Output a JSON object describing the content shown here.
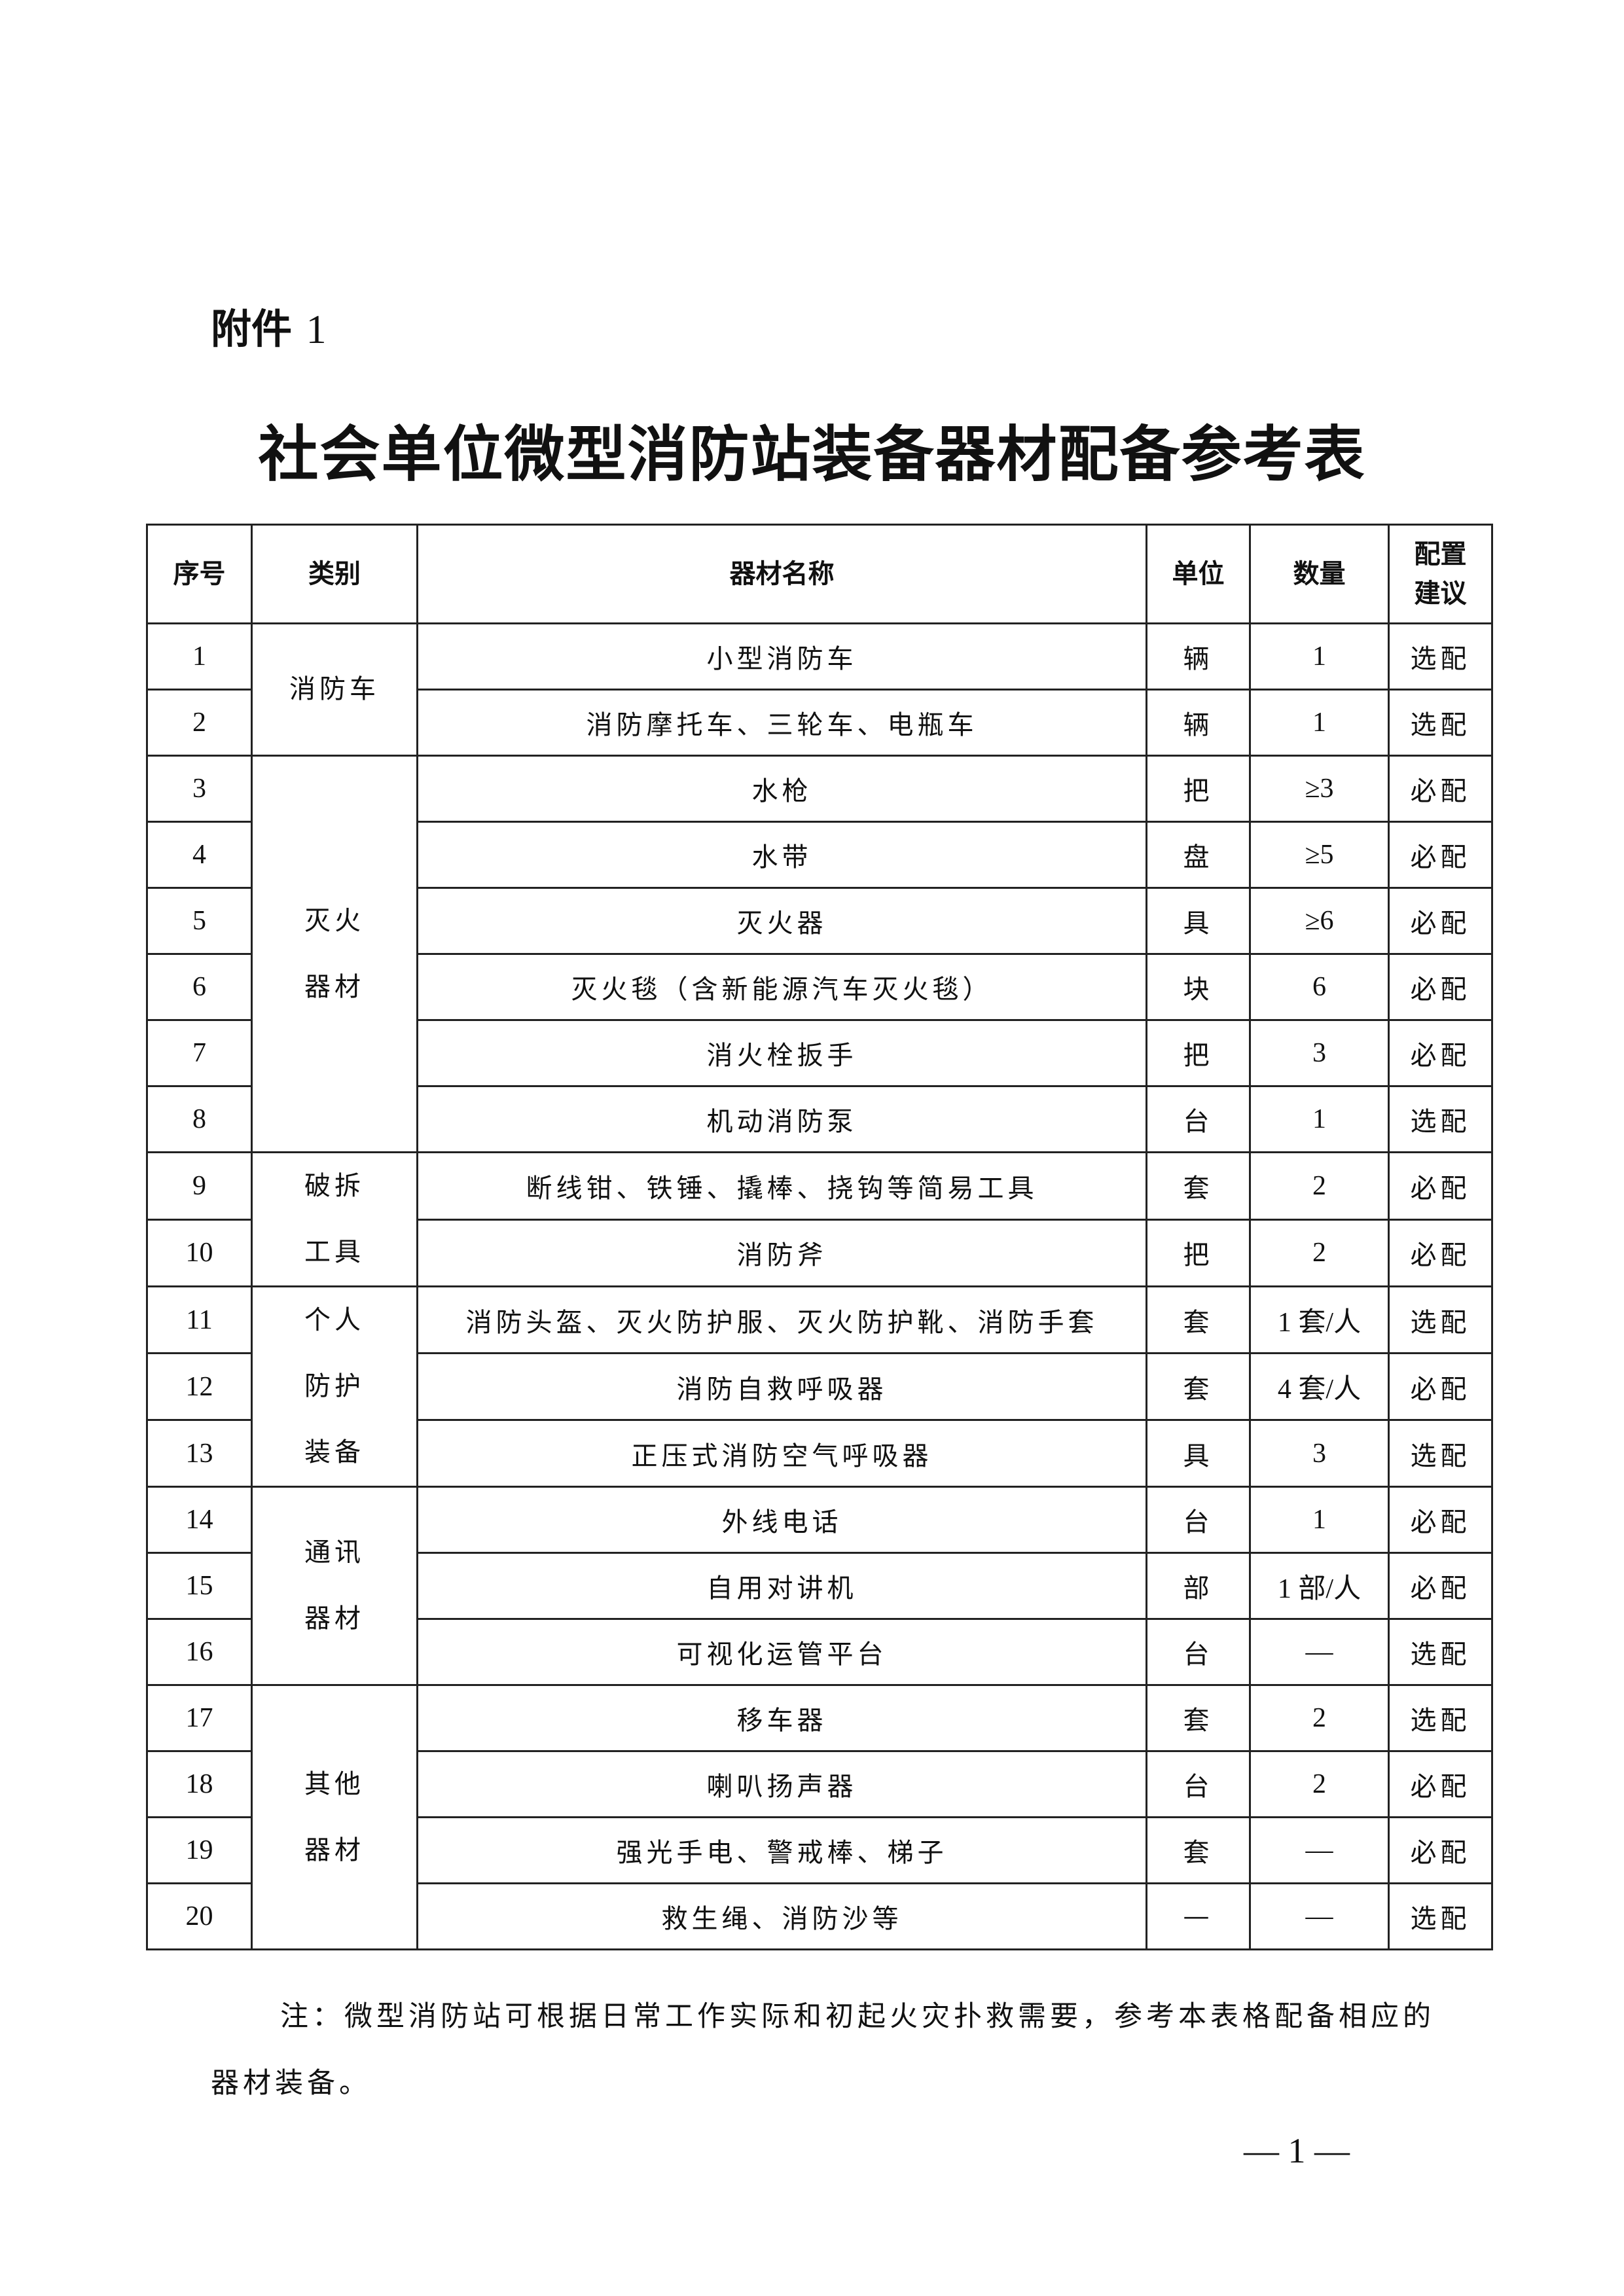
{
  "attachment": {
    "label": "附件",
    "number": "1"
  },
  "title": "社会单位微型消防站装备器材配备参考表",
  "table": {
    "headers": {
      "no": "序号",
      "category": "类别",
      "name": "器材名称",
      "unit": "单位",
      "qty": "数量",
      "advice": "配置\n建议"
    },
    "groups": [
      {
        "category": "消防车",
        "rows": [
          {
            "no": "1",
            "name": "小型消防车",
            "unit": "辆",
            "qty": "1",
            "advice": "选配"
          },
          {
            "no": "2",
            "name": "消防摩托车、三轮车、电瓶车",
            "unit": "辆",
            "qty": "1",
            "advice": "选配"
          }
        ]
      },
      {
        "category": "灭火\n器材",
        "rows": [
          {
            "no": "3",
            "name": "水枪",
            "unit": "把",
            "qty": "≥3",
            "advice": "必配"
          },
          {
            "no": "4",
            "name": "水带",
            "unit": "盘",
            "qty": "≥5",
            "advice": "必配"
          },
          {
            "no": "5",
            "name": "灭火器",
            "unit": "具",
            "qty": "≥6",
            "advice": "必配"
          },
          {
            "no": "6",
            "name": "灭火毯（含新能源汽车灭火毯）",
            "unit": "块",
            "qty": "6",
            "advice": "必配"
          },
          {
            "no": "7",
            "name": "消火栓扳手",
            "unit": "把",
            "qty": "3",
            "advice": "必配"
          },
          {
            "no": "8",
            "name": "机动消防泵",
            "unit": "台",
            "qty": "1",
            "advice": "选配"
          }
        ]
      },
      {
        "category": "破拆\n工具",
        "rows": [
          {
            "no": "9",
            "name": "断线钳、铁锤、撬棒、挠钩等简易工具",
            "unit": "套",
            "qty": "2",
            "advice": "必配"
          },
          {
            "no": "10",
            "name": "消防斧",
            "unit": "把",
            "qty": "2",
            "advice": "必配"
          }
        ]
      },
      {
        "category": "个人\n防护\n装备",
        "rows": [
          {
            "no": "11",
            "name": "消防头盔、灭火防护服、灭火防护靴、消防手套",
            "unit": "套",
            "qty": "1 套/人",
            "advice": "选配"
          },
          {
            "no": "12",
            "name": "消防自救呼吸器",
            "unit": "套",
            "qty": "4 套/人",
            "advice": "必配"
          },
          {
            "no": "13",
            "name": "正压式消防空气呼吸器",
            "unit": "具",
            "qty": "3",
            "advice": "选配"
          }
        ]
      },
      {
        "category": "通讯\n器材",
        "rows": [
          {
            "no": "14",
            "name": "外线电话",
            "unit": "台",
            "qty": "1",
            "advice": "必配"
          },
          {
            "no": "15",
            "name": "自用对讲机",
            "unit": "部",
            "qty": "1 部/人",
            "advice": "必配"
          },
          {
            "no": "16",
            "name": "可视化运管平台",
            "unit": "台",
            "qty": "—",
            "advice": "选配"
          }
        ]
      },
      {
        "category": "其他\n器材",
        "rows": [
          {
            "no": "17",
            "name": "移车器",
            "unit": "套",
            "qty": "2",
            "advice": "选配"
          },
          {
            "no": "18",
            "name": "喇叭扬声器",
            "unit": "台",
            "qty": "2",
            "advice": "必配"
          },
          {
            "no": "19",
            "name": "强光手电、警戒棒、梯子",
            "unit": "套",
            "qty": "—",
            "advice": "必配"
          },
          {
            "no": "20",
            "name": "救生绳、消防沙等",
            "unit": "—",
            "qty": "—",
            "advice": "选配"
          }
        ]
      }
    ]
  },
  "note": "注：微型消防站可根据日常工作实际和初起火灾扑救需要，参考本表格配备相应的器材装备。",
  "page_number": "— 1 —"
}
